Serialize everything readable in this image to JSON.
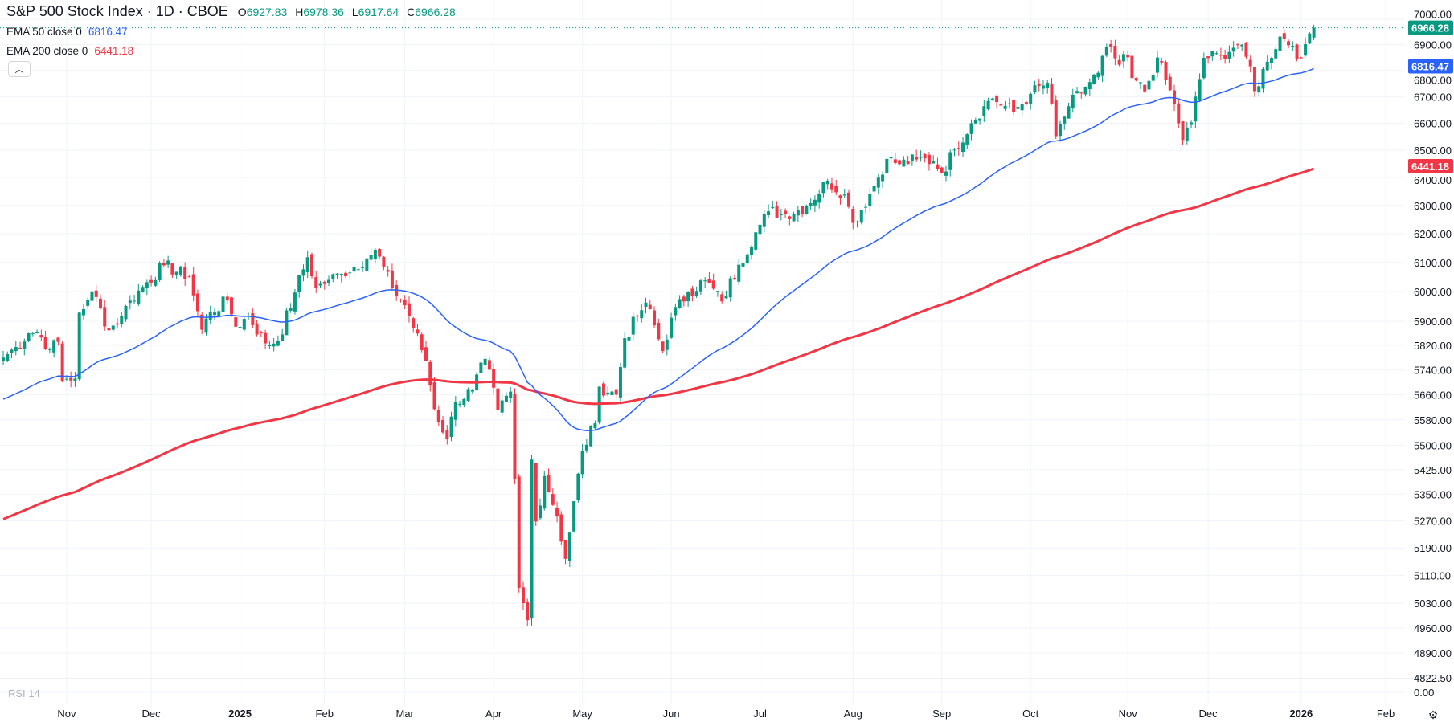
{
  "header": {
    "title": "S&P 500 Stock Index · 1D · CBOE",
    "o_label": "O",
    "o": "6927.83",
    "h_label": "H",
    "h": "6978.36",
    "l_label": "L",
    "l": "6917.64",
    "c_label": "C",
    "c": "6966.28"
  },
  "indicators": [
    {
      "label": "EMA 50 close 0",
      "value": "6816.47",
      "color": "#2962ff"
    },
    {
      "label": "EMA 200 close 0",
      "value": "6441.18",
      "color": "#f23645"
    }
  ],
  "rsi_label": "RSI 14",
  "rsi_axis": "0.00",
  "collapse_icon": "chevron-up-icon",
  "settings_icon": "gear-icon",
  "chart_data": {
    "type": "candlestick",
    "title": "S&P 500 Stock Index · 1D · CBOE",
    "scale": "log",
    "ylim": [
      4822.5,
      7000
    ],
    "y_ticks": [
      "7000.00",
      "6900.00",
      "6800.00",
      "6700.00",
      "6600.00",
      "6500.00",
      "6400.00",
      "6300.00",
      "6200.00",
      "6100.00",
      "6000.00",
      "5900.00",
      "5820.00",
      "5740.00",
      "5660.00",
      "5580.00",
      "5500.00",
      "5425.00",
      "5350.00",
      "5270.00",
      "5190.00",
      "5110.00",
      "5030.00",
      "4960.00",
      "4890.00",
      "4822.50"
    ],
    "x_ticks": [
      {
        "label": "Nov",
        "bar": 15
      },
      {
        "label": "Dec",
        "bar": 35
      },
      {
        "label": "2025",
        "bar": 56
      },
      {
        "label": "Feb",
        "bar": 76
      },
      {
        "label": "Mar",
        "bar": 95
      },
      {
        "label": "Apr",
        "bar": 116
      },
      {
        "label": "May",
        "bar": 137
      },
      {
        "label": "Jun",
        "bar": 158
      },
      {
        "label": "Jul",
        "bar": 179
      },
      {
        "label": "Aug",
        "bar": 201
      },
      {
        "label": "Sep",
        "bar": 222
      },
      {
        "label": "Oct",
        "bar": 243
      },
      {
        "label": "Nov",
        "bar": 266
      },
      {
        "label": "Dec",
        "bar": 285
      },
      {
        "label": "2026",
        "bar": 307
      },
      {
        "label": "Feb",
        "bar": 327
      }
    ],
    "close_anchors": [
      [
        0,
        5780
      ],
      [
        3,
        5815
      ],
      [
        6,
        5860
      ],
      [
        8,
        5865
      ],
      [
        11,
        5808
      ],
      [
        13,
        5832
      ],
      [
        14,
        5705
      ],
      [
        17,
        5712
      ],
      [
        18,
        5929
      ],
      [
        20,
        5973
      ],
      [
        21,
        6001
      ],
      [
        25,
        5870
      ],
      [
        28,
        5917
      ],
      [
        30,
        5970
      ],
      [
        34,
        6032
      ],
      [
        38,
        6090
      ],
      [
        44,
        6051
      ],
      [
        47,
        5872
      ],
      [
        49,
        5930
      ],
      [
        53,
        5970
      ],
      [
        55,
        5882
      ],
      [
        58,
        5918
      ],
      [
        62,
        5827
      ],
      [
        65,
        5836
      ],
      [
        69,
        5997
      ],
      [
        72,
        6118
      ],
      [
        74,
        6012
      ],
      [
        77,
        6040
      ],
      [
        80,
        6061
      ],
      [
        86,
        6114
      ],
      [
        88,
        6144
      ],
      [
        92,
        6013
      ],
      [
        95,
        5954
      ],
      [
        100,
        5770
      ],
      [
        102,
        5614
      ],
      [
        105,
        5521
      ],
      [
        107,
        5638
      ],
      [
        111,
        5675
      ],
      [
        114,
        5776
      ],
      [
        117,
        5611
      ],
      [
        120,
        5670
      ],
      [
        121,
        5396
      ],
      [
        122,
        5074
      ],
      [
        124,
        4982
      ],
      [
        125,
        5456
      ],
      [
        126,
        5268
      ],
      [
        128,
        5405
      ],
      [
        131,
        5283
      ],
      [
        133,
        5158
      ],
      [
        137,
        5484
      ],
      [
        140,
        5569
      ],
      [
        141,
        5686
      ],
      [
        145,
        5660
      ],
      [
        147,
        5844
      ],
      [
        150,
        5916
      ],
      [
        152,
        5963
      ],
      [
        156,
        5802
      ],
      [
        158,
        5912
      ],
      [
        162,
        6000
      ],
      [
        166,
        6038
      ],
      [
        170,
        5967
      ],
      [
        174,
        6092
      ],
      [
        178,
        6205
      ],
      [
        181,
        6279
      ],
      [
        185,
        6268
      ],
      [
        190,
        6297
      ],
      [
        195,
        6389
      ],
      [
        199,
        6339
      ],
      [
        201,
        6238
      ],
      [
        205,
        6340
      ],
      [
        209,
        6468
      ],
      [
        212,
        6449
      ],
      [
        216,
        6466
      ],
      [
        220,
        6460
      ],
      [
        222,
        6415
      ],
      [
        225,
        6502
      ],
      [
        229,
        6600
      ],
      [
        232,
        6664
      ],
      [
        234,
        6693
      ],
      [
        239,
        6643
      ],
      [
        243,
        6711
      ],
      [
        247,
        6753
      ],
      [
        249,
        6552
      ],
      [
        252,
        6664
      ],
      [
        256,
        6738
      ],
      [
        259,
        6791
      ],
      [
        261,
        6890
      ],
      [
        264,
        6822
      ],
      [
        266,
        6851
      ],
      [
        267,
        6771
      ],
      [
        270,
        6720
      ],
      [
        273,
        6850
      ],
      [
        277,
        6672
      ],
      [
        279,
        6538
      ],
      [
        281,
        6603
      ],
      [
        284,
        6849
      ],
      [
        288,
        6857
      ],
      [
        292,
        6901
      ],
      [
        295,
        6816
      ],
      [
        296,
        6721
      ],
      [
        299,
        6834
      ],
      [
        302,
        6932
      ],
      [
        305,
        6896
      ],
      [
        306,
        6845
      ],
      [
        308,
        6902
      ],
      [
        309,
        6944
      ],
      [
        310,
        6966.28
      ]
    ],
    "last_candle": {
      "open": 6927.83,
      "high": 6978.36,
      "low": 6917.64,
      "close": 6966.28
    },
    "ema50_seed": 5640,
    "ema200_seed": 5270,
    "ema50_last": 6816.47,
    "ema200_last": 6441.18,
    "colors": {
      "up": "#089981",
      "down": "#f23645",
      "ema50": "#2962ff",
      "ema200": "#f23645",
      "last_price": "#089981"
    }
  }
}
